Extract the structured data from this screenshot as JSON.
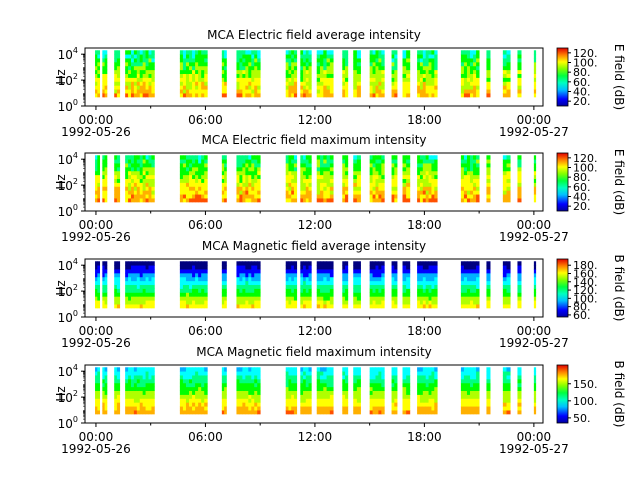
{
  "chart_data": [
    {
      "type": "heatmap",
      "title": "MCA  Electric field average intensity",
      "ylabel": "Hz",
      "yscale": "log",
      "ylim": [
        1,
        30000
      ],
      "y_ticks": [
        {
          "base": "10",
          "exp": "0"
        },
        {
          "base": "10",
          "exp": "2"
        },
        {
          "base": "10",
          "exp": "4"
        }
      ],
      "x_ticks": [
        {
          "time": "00:00",
          "date": "1992-05-26"
        },
        {
          "time": "06:00",
          "date": ""
        },
        {
          "time": "12:00",
          "date": ""
        },
        {
          "time": "18:00",
          "date": ""
        },
        {
          "time": "00:00",
          "date": "1992-05-27"
        }
      ],
      "xlim_hours": [
        -0.6,
        24.5
      ],
      "colorbar": {
        "label": "E field (dB)",
        "range": [
          10,
          130
        ],
        "ticks": [
          "20.",
          "40.",
          "60.",
          "80.",
          "100.",
          "120."
        ]
      }
    },
    {
      "type": "heatmap",
      "title": "MCA  Electric field maximum intensity",
      "ylabel": "Hz",
      "yscale": "log",
      "ylim": [
        1,
        30000
      ],
      "y_ticks": [
        {
          "base": "10",
          "exp": "0"
        },
        {
          "base": "10",
          "exp": "2"
        },
        {
          "base": "10",
          "exp": "4"
        }
      ],
      "x_ticks": [
        {
          "time": "00:00",
          "date": "1992-05-26"
        },
        {
          "time": "06:00",
          "date": ""
        },
        {
          "time": "12:00",
          "date": ""
        },
        {
          "time": "18:00",
          "date": ""
        },
        {
          "time": "00:00",
          "date": "1992-05-27"
        }
      ],
      "xlim_hours": [
        -0.6,
        24.5
      ],
      "colorbar": {
        "label": "E field (dB)",
        "range": [
          10,
          130
        ],
        "ticks": [
          "20.",
          "40.",
          "60.",
          "80.",
          "100.",
          "120."
        ]
      }
    },
    {
      "type": "heatmap",
      "title": "MCA  Magnetic field average intensity",
      "ylabel": "Hz",
      "yscale": "log",
      "ylim": [
        1,
        30000
      ],
      "y_ticks": [
        {
          "base": "10",
          "exp": "0"
        },
        {
          "base": "10",
          "exp": "2"
        },
        {
          "base": "10",
          "exp": "4"
        }
      ],
      "x_ticks": [
        {
          "time": "00:00",
          "date": "1992-05-26"
        },
        {
          "time": "06:00",
          "date": ""
        },
        {
          "time": "12:00",
          "date": ""
        },
        {
          "time": "18:00",
          "date": ""
        },
        {
          "time": "00:00",
          "date": "1992-05-27"
        }
      ],
      "xlim_hours": [
        -0.6,
        24.5
      ],
      "colorbar": {
        "label": "B field (dB)",
        "range": [
          55,
          195
        ],
        "ticks": [
          "60.",
          "80.",
          "100.",
          "120.",
          "140.",
          "160.",
          "180."
        ]
      }
    },
    {
      "type": "heatmap",
      "title": "MCA  Magnetic field maximum intensity",
      "ylabel": "Hz",
      "yscale": "log",
      "ylim": [
        1,
        30000
      ],
      "y_ticks": [
        {
          "base": "10",
          "exp": "0"
        },
        {
          "base": "10",
          "exp": "2"
        },
        {
          "base": "10",
          "exp": "4"
        }
      ],
      "x_ticks": [
        {
          "time": "00:00",
          "date": "1992-05-26"
        },
        {
          "time": "06:00",
          "date": ""
        },
        {
          "time": "12:00",
          "date": ""
        },
        {
          "time": "18:00",
          "date": ""
        },
        {
          "time": "00:00",
          "date": "1992-05-27"
        }
      ],
      "xlim_hours": [
        -0.6,
        24.5
      ],
      "colorbar": {
        "label": "B field (dB)",
        "range": [
          35,
          205
        ],
        "ticks": [
          "50.",
          "100.",
          "150."
        ]
      }
    }
  ],
  "data_intervals_hours": [
    [
      -0.05,
      0.2
    ],
    [
      0.35,
      0.6
    ],
    [
      1.0,
      1.3
    ],
    [
      1.6,
      3.2
    ],
    [
      4.6,
      6.1
    ],
    [
      6.9,
      7.15
    ],
    [
      7.7,
      9.0
    ],
    [
      10.4,
      11.0
    ],
    [
      11.2,
      11.8
    ],
    [
      12.1,
      13.0
    ],
    [
      13.5,
      13.8
    ],
    [
      14.1,
      14.5
    ],
    [
      15.0,
      15.8
    ],
    [
      16.2,
      16.5
    ],
    [
      16.8,
      17.2
    ],
    [
      17.6,
      18.7
    ],
    [
      20.0,
      21.0
    ],
    [
      21.4,
      21.6
    ],
    [
      22.3,
      22.7
    ],
    [
      23.1,
      23.3
    ],
    [
      24.0,
      24.1
    ]
  ],
  "colormap": [
    "#00007f",
    "#0000ff",
    "#00b0ff",
    "#00ffff",
    "#00ff80",
    "#00ff00",
    "#b0ff00",
    "#ffff00",
    "#ffb000",
    "#ff5000",
    "#e00000"
  ]
}
